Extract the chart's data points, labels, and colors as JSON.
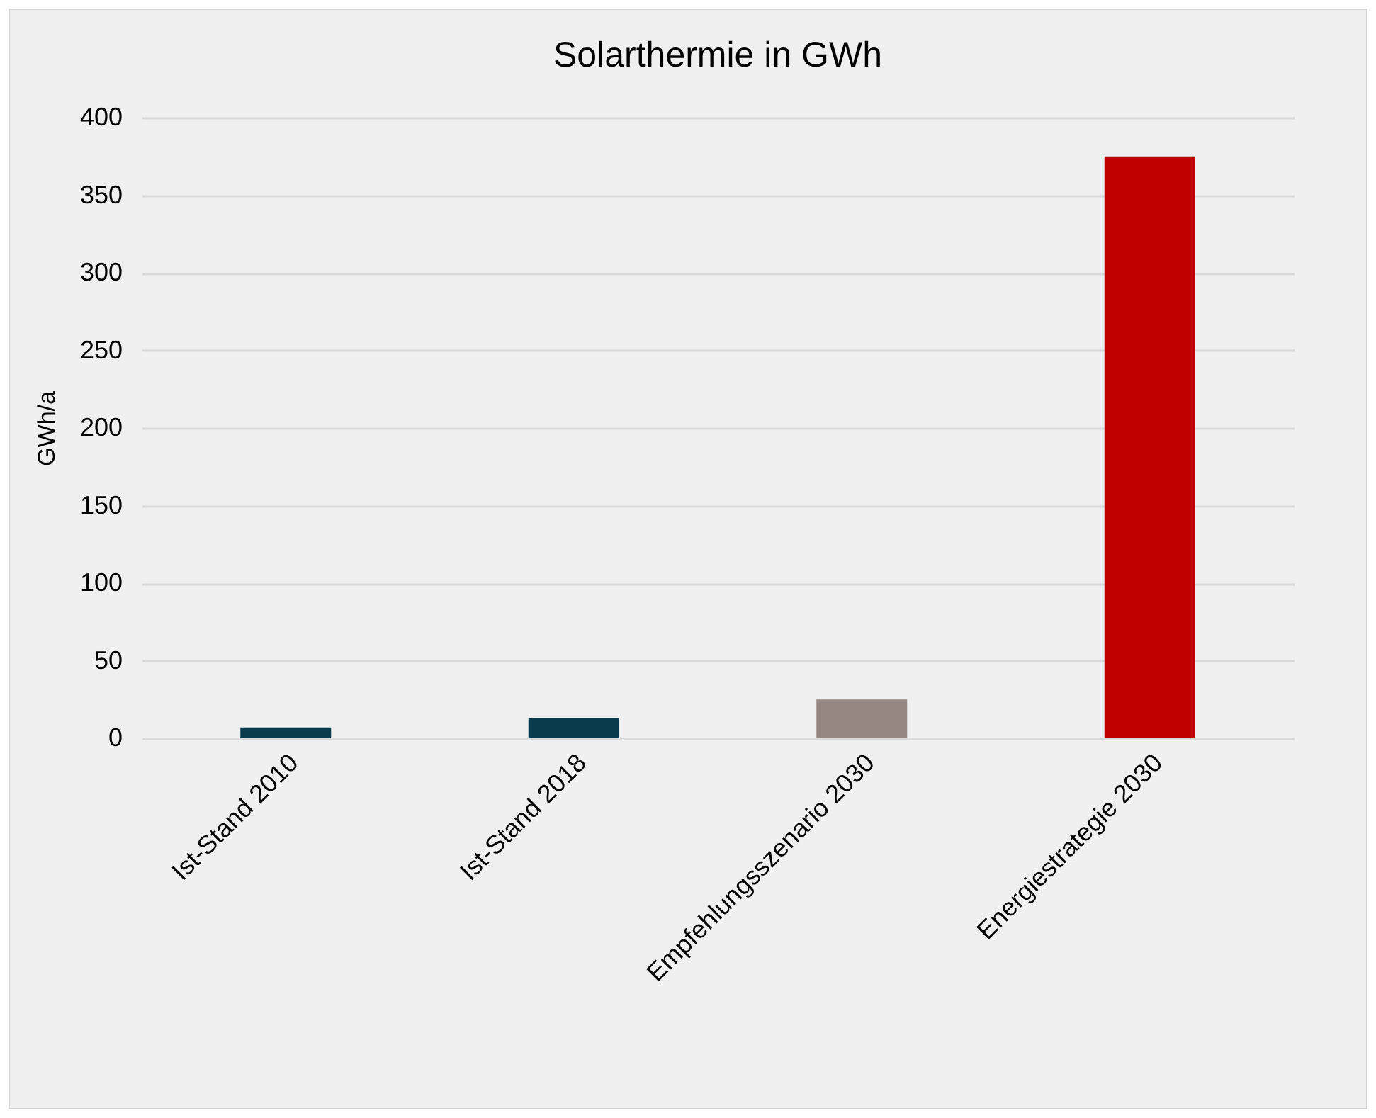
{
  "chart_data": {
    "type": "bar",
    "title": "Solarthermie in GWh",
    "ylabel": "GWh/a",
    "categories": [
      "Ist-Stand 2010",
      "Ist-Stand 2018",
      "Empfehlungsszenario 2030",
      "Energiestrategie 2030"
    ],
    "values": [
      7,
      13,
      25,
      375
    ],
    "colors": [
      "#083a4b",
      "#083a4b",
      "#978782",
      "#c00000"
    ],
    "ylim": [
      0,
      400
    ],
    "yticks": [
      0,
      50,
      100,
      150,
      200,
      250,
      300,
      350,
      400
    ],
    "grid": "y",
    "legend": false
  }
}
